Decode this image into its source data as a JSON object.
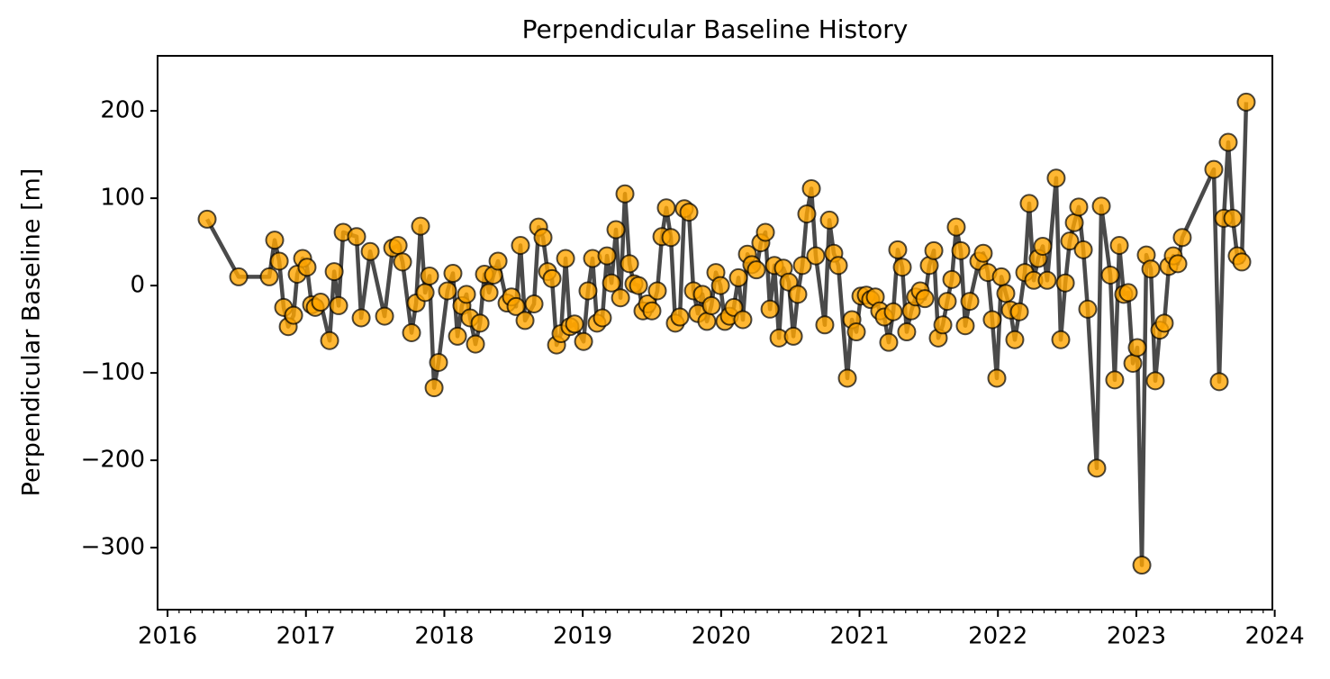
{
  "chart_data": {
    "type": "line",
    "title": "Perpendicular Baseline History",
    "y_label": "Perpendicular Baseline [m]",
    "color": "#ffa500",
    "line_color": "#404040",
    "xlim": [
      2015.928,
      2023.983
    ],
    "xticks": [
      2016,
      2017,
      2018,
      2019,
      2020,
      2021,
      2022,
      2023,
      2024
    ],
    "ylim": [
      -371,
      263
    ],
    "yticks": [
      -300,
      -200,
      -100,
      0,
      100,
      200
    ],
    "grid": false,
    "x": [
      2016.286,
      2016.514,
      2016.735,
      2016.774,
      2016.807,
      2016.839,
      2016.872,
      2016.911,
      2016.937,
      2016.976,
      2017.008,
      2017.041,
      2017.067,
      2017.106,
      2017.171,
      2017.204,
      2017.236,
      2017.269,
      2017.366,
      2017.399,
      2017.464,
      2017.568,
      2017.627,
      2017.666,
      2017.698,
      2017.763,
      2017.796,
      2017.828,
      2017.861,
      2017.893,
      2017.926,
      2017.958,
      2018.023,
      2018.062,
      2018.095,
      2018.127,
      2018.16,
      2018.186,
      2018.225,
      2018.258,
      2018.29,
      2018.323,
      2018.355,
      2018.388,
      2018.453,
      2018.485,
      2018.518,
      2018.55,
      2018.583,
      2018.648,
      2018.681,
      2018.713,
      2018.746,
      2018.778,
      2018.811,
      2018.843,
      2018.876,
      2018.908,
      2018.941,
      2019.006,
      2019.038,
      2019.071,
      2019.103,
      2019.142,
      2019.175,
      2019.208,
      2019.24,
      2019.273,
      2019.305,
      2019.338,
      2019.37,
      2019.403,
      2019.435,
      2019.468,
      2019.5,
      2019.539,
      2019.572,
      2019.604,
      2019.637,
      2019.669,
      2019.702,
      2019.734,
      2019.767,
      2019.8,
      2019.832,
      2019.865,
      2019.897,
      2019.93,
      2019.962,
      2019.995,
      2020.027,
      2020.06,
      2020.092,
      2020.125,
      2020.157,
      2020.19,
      2020.222,
      2020.255,
      2020.287,
      2020.32,
      2020.353,
      2020.385,
      2020.418,
      2020.45,
      2020.489,
      2020.522,
      2020.554,
      2020.587,
      2020.619,
      2020.652,
      2020.684,
      2020.749,
      2020.782,
      2020.814,
      2020.847,
      2020.912,
      2020.945,
      2020.977,
      2021.01,
      2021.049,
      2021.081,
      2021.114,
      2021.146,
      2021.179,
      2021.211,
      2021.244,
      2021.276,
      2021.309,
      2021.341,
      2021.374,
      2021.406,
      2021.439,
      2021.472,
      2021.504,
      2021.537,
      2021.569,
      2021.602,
      2021.634,
      2021.667,
      2021.699,
      2021.732,
      2021.764,
      2021.797,
      2021.862,
      2021.894,
      2021.927,
      2021.959,
      2021.992,
      2022.025,
      2022.057,
      2022.09,
      2022.122,
      2022.155,
      2022.194,
      2022.226,
      2022.259,
      2022.291,
      2022.324,
      2022.356,
      2022.421,
      2022.454,
      2022.487,
      2022.519,
      2022.552,
      2022.584,
      2022.617,
      2022.649,
      2022.714,
      2022.747,
      2022.812,
      2022.844,
      2022.877,
      2022.909,
      2022.942,
      2022.975,
      2023.007,
      2023.04,
      2023.072,
      2023.105,
      2023.137,
      2023.17,
      2023.202,
      2023.235,
      2023.267,
      2023.3,
      2023.332,
      2023.56,
      2023.599,
      2023.632,
      2023.664,
      2023.697,
      2023.729,
      2023.762,
      2023.794
    ],
    "values": [
      76,
      10,
      10,
      52,
      28,
      -25,
      -47,
      -34,
      13,
      31,
      21,
      -22,
      -25,
      -19,
      -63,
      16,
      -23,
      61,
      56,
      -37,
      39,
      -35,
      43,
      46,
      27,
      -54,
      -20,
      68,
      -8,
      11,
      -117,
      -88,
      -6,
      14,
      -58,
      -23,
      -10,
      -37,
      -67,
      -43,
      13,
      -8,
      12,
      28,
      -20,
      -13,
      -24,
      46,
      -40,
      -21,
      67,
      55,
      16,
      8,
      -68,
      -55,
      31,
      -47,
      -44,
      -64,
      -6,
      31,
      -43,
      -37,
      34,
      3,
      64,
      -14,
      105,
      25,
      2,
      0,
      -29,
      -21,
      -29,
      -6,
      56,
      89,
      55,
      -43,
      -36,
      88,
      84,
      -6,
      -32,
      -10,
      -41,
      -23,
      15,
      0,
      -41,
      -35,
      -25,
      9,
      -39,
      36,
      24,
      18,
      49,
      61,
      -27,
      23,
      -60,
      20,
      4,
      -58,
      -10,
      23,
      82,
      111,
      34,
      -45,
      75,
      37,
      23,
      -106,
      -39,
      -53,
      -12,
      -11,
      -16,
      -13,
      -29,
      -36,
      -65,
      -30,
      41,
      21,
      -53,
      -29,
      -13,
      -6,
      -15,
      23,
      40,
      -60,
      -45,
      -18,
      7,
      67,
      40,
      -46,
      -18,
      28,
      37,
      15,
      -39,
      -106,
      10,
      -9,
      -28,
      -62,
      -30,
      15,
      94,
      6,
      31,
      45,
      6,
      123,
      -62,
      3,
      51,
      72,
      90,
      41,
      -27,
      -209,
      91,
      12,
      -108,
      46,
      -10,
      -8,
      -89,
      -71,
      -320,
      35,
      19,
      -109,
      -51,
      -43,
      22,
      34,
      25,
      55,
      133,
      -110,
      77,
      164,
      77,
      34,
      27,
      210
    ]
  }
}
